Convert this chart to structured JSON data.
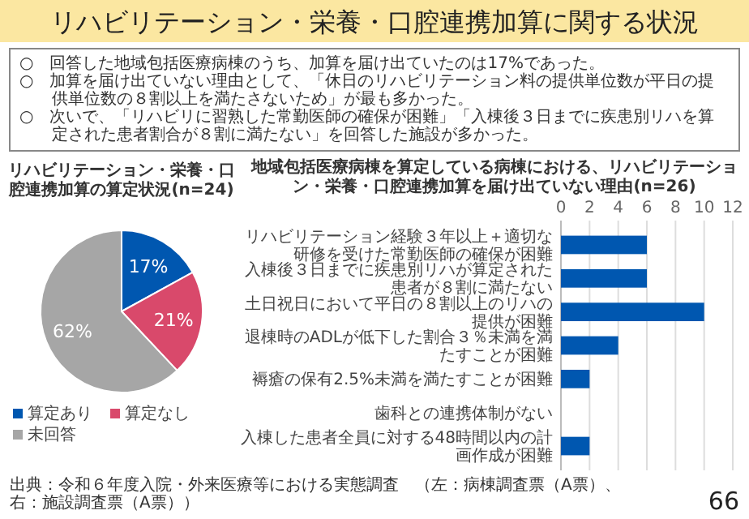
{
  "chart_data": [
    {
      "type": "other",
      "title": "リハビリテーション・栄養・口腔連携加算に関する状況",
      "annotations": [
        "○　回答した地域包括医療病棟のうち、加算を届け出ていたのは17%であった。",
        "○　加算を届け出ていない理由として、「休日のリハビリテーション料の提供単位数が平日の提供単位数の８割以上を満たさないため」が最も多かった。",
        "○　次いで、「リハビリに習熟した常勤医師の確保が困難」「入棟後３日までに疾患別リハを算定された患者割合が８割に満たない」を回答した施設が多かった。"
      ]
    },
    {
      "type": "pie",
      "title": "リハビリテーション・栄養・口腔連携加算の算定状況(n=24)",
      "categories": [
        "算定あり",
        "算定なし",
        "未回答"
      ],
      "values": [
        17,
        21,
        62
      ],
      "colors": [
        "#0057b0",
        "#d9496b",
        "#a6a6a6"
      ],
      "value_labels": [
        "17%",
        "21%",
        "62%"
      ],
      "legend": "bottom"
    },
    {
      "type": "bar",
      "orientation": "horizontal",
      "title": "地域包括医療病棟を算定している病棟における、リハビリテーション・栄養・口腔連携加算を届け出ていない理由(n=26)",
      "categories": [
        "リハビリテーション経験３年以上＋適切な研修を受けた常勤医師の確保が困難",
        "入棟後３日までに疾患別リハが算定された患者が８割に満たない",
        "土日祝日において平日の８割以上のリハの提供が困難",
        "退棟時のADLが低下した割合３％未満を満たすことが困難",
        "褥瘡の保有2.5%未満を満たすことが困難",
        "歯科との連携体制がない",
        "入棟した患者全員に対する48時間以内の計画作成が困難"
      ],
      "values": [
        6,
        6,
        10,
        4,
        2,
        0,
        2
      ],
      "color": "#0057b0",
      "xlim": [
        0,
        12
      ],
      "xticks": [
        0,
        2,
        4,
        6,
        8,
        10,
        12
      ],
      "grid": "x",
      "annotations": [
        "出典：令和６年度入院・外来医療等における実態調査　（左：病棟調査票（A票）、右：施設調査票（A票））",
        "66"
      ]
    }
  ]
}
